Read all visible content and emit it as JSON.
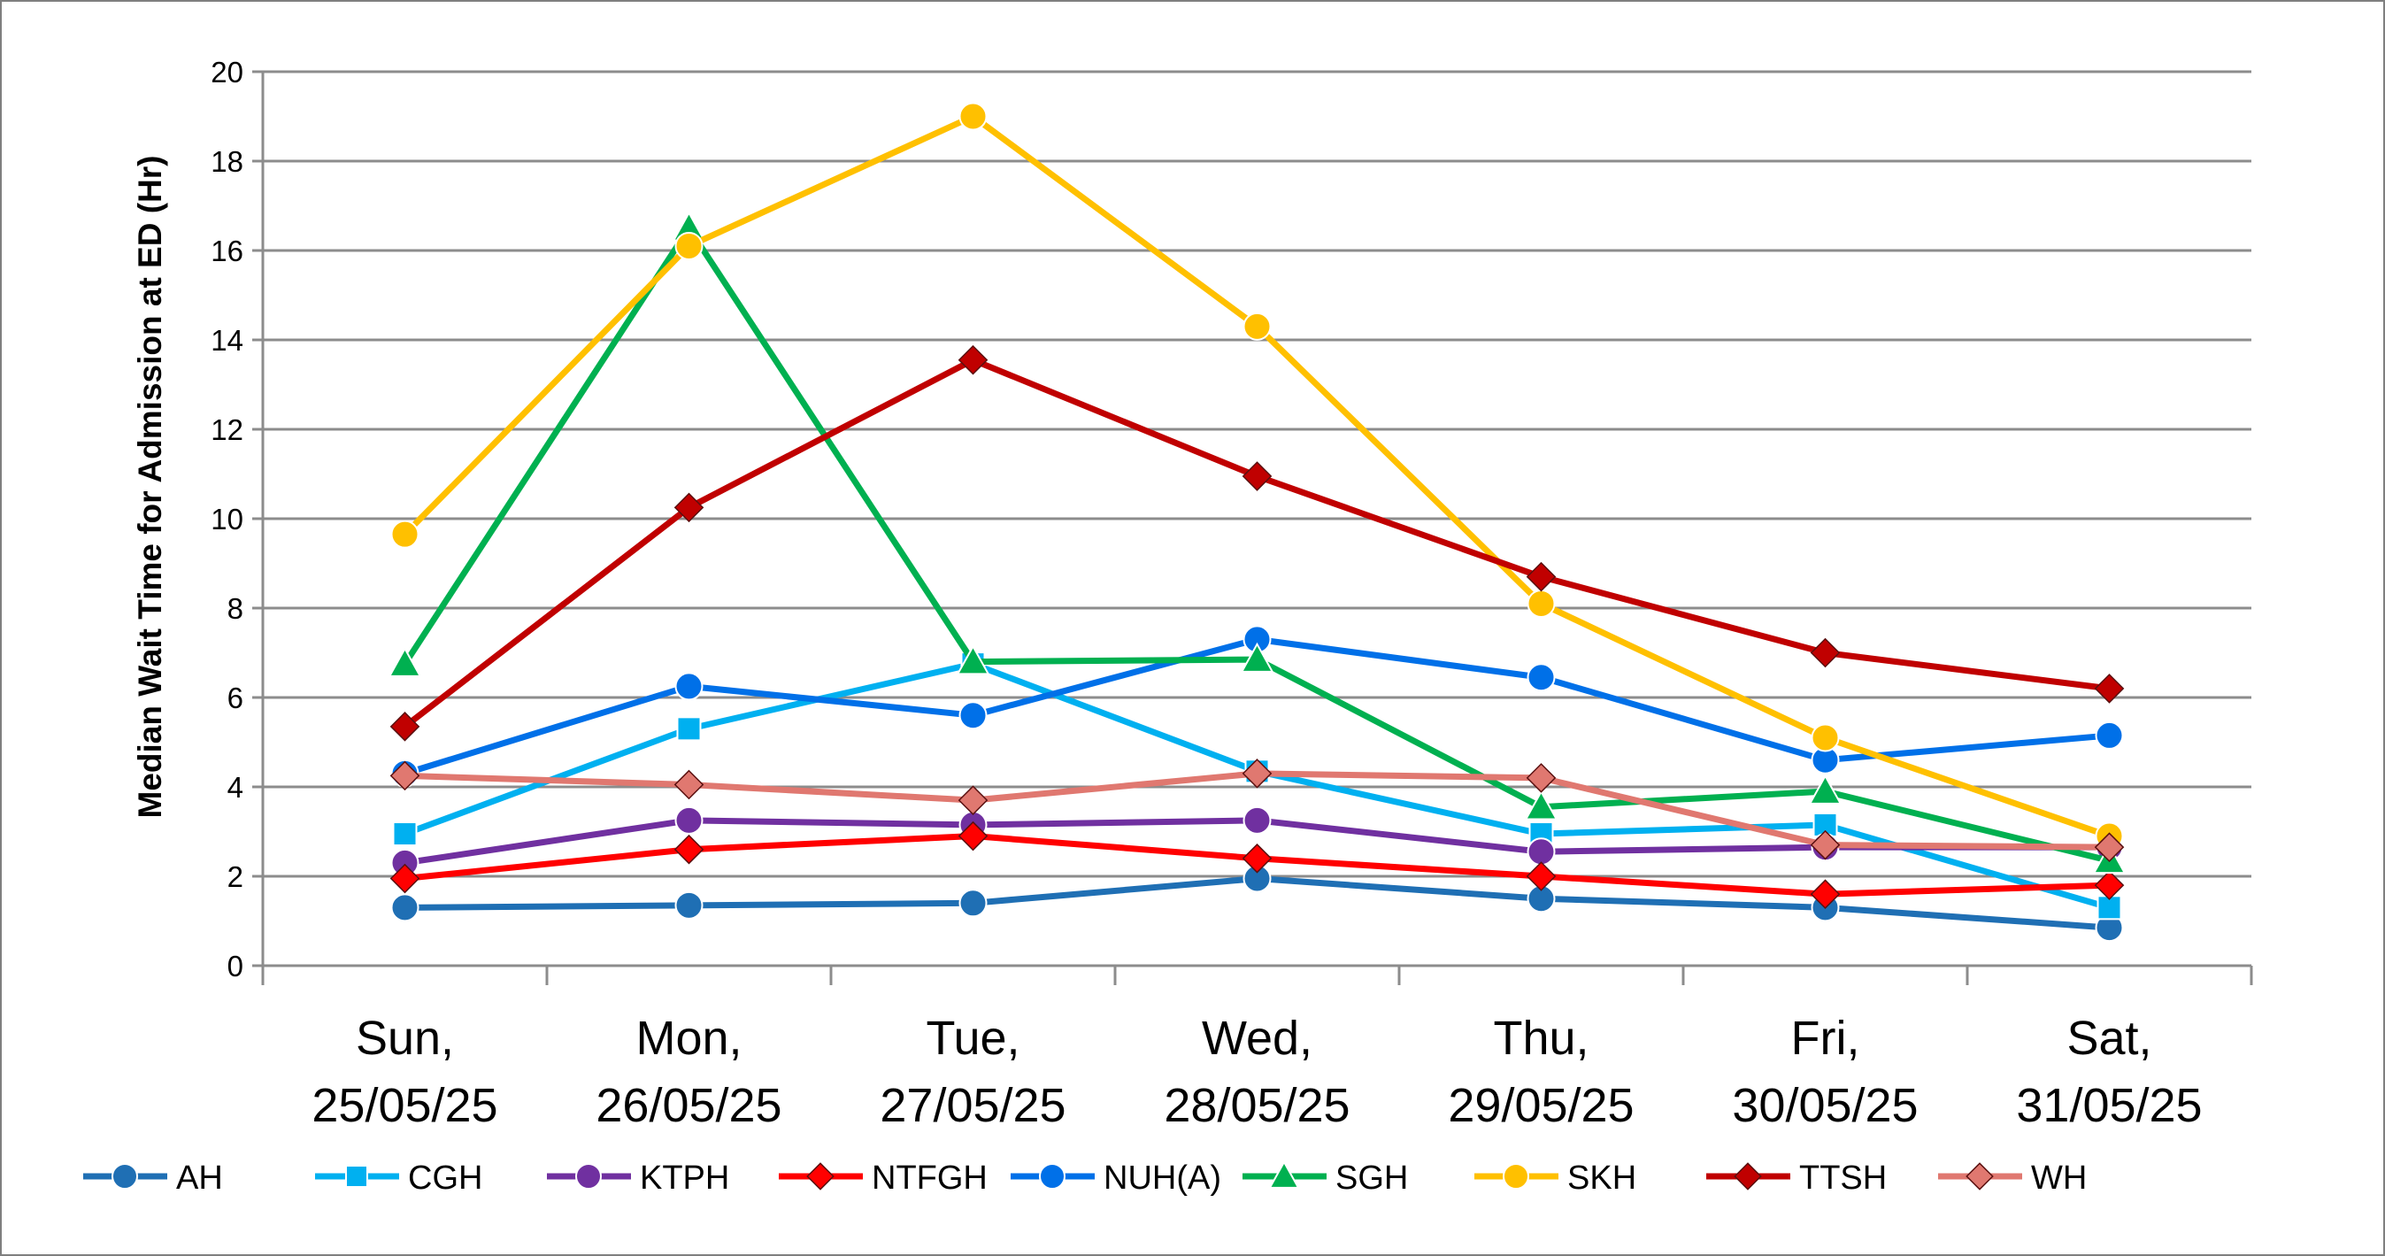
{
  "chart_data": {
    "type": "line",
    "title": "",
    "xlabel": "",
    "ylabel": "Median Wait Time for Admission at ED (Hr)",
    "ylim": [
      0,
      20
    ],
    "yticks": [
      0,
      2,
      4,
      6,
      8,
      10,
      12,
      14,
      16,
      18,
      20
    ],
    "grid": true,
    "legend_position": "bottom",
    "categories": [
      [
        "Sun,",
        "25/05/25"
      ],
      [
        "Mon,",
        "26/05/25"
      ],
      [
        "Tue,",
        "27/05/25"
      ],
      [
        "Wed,",
        "28/05/25"
      ],
      [
        "Thu,",
        "29/05/25"
      ],
      [
        "Fri,",
        "30/05/25"
      ],
      [
        "Sat,",
        "31/05/25"
      ]
    ],
    "series": [
      {
        "name": "AH",
        "color": "#1f6fb4",
        "marker": "circle",
        "values": [
          1.3,
          1.35,
          1.4,
          1.95,
          1.5,
          1.3,
          0.85
        ]
      },
      {
        "name": "CGH",
        "color": "#00b0f0",
        "marker": "square",
        "values": [
          2.95,
          5.3,
          6.75,
          4.35,
          2.95,
          3.15,
          1.3
        ]
      },
      {
        "name": "KTPH",
        "color": "#7030a0",
        "marker": "circle",
        "values": [
          2.3,
          3.25,
          3.15,
          3.25,
          2.55,
          2.65,
          2.65
        ]
      },
      {
        "name": "NTFGH",
        "color": "#ff0000",
        "marker": "diamond",
        "values": [
          1.95,
          2.6,
          2.9,
          2.4,
          2.0,
          1.6,
          1.8
        ]
      },
      {
        "name": "NUH(A)",
        "color": "#0070e8",
        "marker": "circle",
        "values": [
          4.3,
          6.25,
          5.6,
          7.3,
          6.45,
          4.6,
          5.15
        ]
      },
      {
        "name": "SGH",
        "color": "#00b050",
        "marker": "triangle",
        "values": [
          6.75,
          16.5,
          6.8,
          6.85,
          3.55,
          3.9,
          2.35
        ]
      },
      {
        "name": "SKH",
        "color": "#ffc000",
        "marker": "circle",
        "values": [
          9.65,
          16.1,
          19.0,
          14.3,
          8.1,
          5.1,
          2.9
        ]
      },
      {
        "name": "TTSH",
        "color": "#c00000",
        "marker": "diamond",
        "values": [
          5.35,
          10.25,
          13.55,
          10.95,
          8.7,
          7.0,
          6.2
        ]
      },
      {
        "name": "WH",
        "color": "#e07870",
        "marker": "diamond",
        "values": [
          4.25,
          4.05,
          3.7,
          4.3,
          4.2,
          2.7,
          2.65
        ]
      }
    ]
  }
}
